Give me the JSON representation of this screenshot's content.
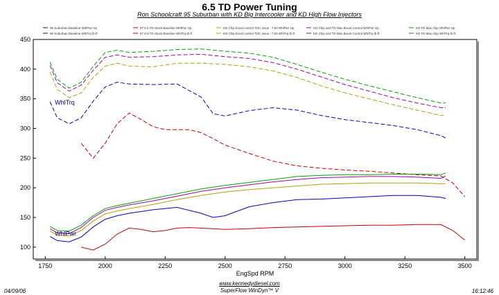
{
  "header": {
    "title": "6.5 TD Power Tuning",
    "subtitle": "Ron Schoolcraft 95 Suburban with KD Big Intercooler and KD High Flow Injectors"
  },
  "footer": {
    "date": "04/09/06",
    "url": "www.kennedydiesel.com",
    "software": "SuperFlow WinDyn™ V",
    "time": "16:12:46"
  },
  "legend": [
    {
      "text": "95 Suburban Baseline  WhlPwr  Hp",
      "color": "#0000c0"
    },
    {
      "text": "95 Suburban Baseline  WhlTrq  lb-ft",
      "color": "#0000c0"
    },
    {
      "text": "97 6.5 TD Stock Baseline  WhlPwr  Hp",
      "color": "#c00000"
    },
    {
      "text": "97 6.5 TD Stock Baseline  WhlTrq  lb-ft",
      "color": "#c00000"
    },
    {
      "text": "KD Chip  boost control  TOC issue : 7.50  WhlPwr  Hp",
      "color": "#b0a000"
    },
    {
      "text": "KD Chip  boost control  TOC issue : 7.50  WhlTrq  lb-ft",
      "color": "#b0a000"
    },
    {
      "text": "KD Chip and TD Max  Boost Control  WhlPwr  Hp",
      "color": "#a000a0"
    },
    {
      "text": "KD Chip and TD Max  Boost Control  WhlTrq  lb-ft",
      "color": "#a000a0"
    },
    {
      "text": "KD TD Max chip  WhlPwr  Hp",
      "color": "#00a000"
    },
    {
      "text": "KD TD Max chip  WhlTrq  lb-ft",
      "color": "#00a000"
    }
  ],
  "chart_data": {
    "type": "line",
    "xlabel": "EngSpd  RPM",
    "ylabel": "",
    "xlim": [
      1700,
      3550
    ],
    "ylim": [
      80,
      450
    ],
    "xticks": [
      1750,
      2000,
      2250,
      2500,
      2750,
      3000,
      3250,
      3500
    ],
    "yticks": [
      100,
      150,
      200,
      250,
      300,
      350,
      400,
      450
    ],
    "grid": false,
    "annotations": [
      {
        "text": "WhlTrq",
        "x": 1790,
        "y": 340
      },
      {
        "text": "WhlPwr",
        "x": 1790,
        "y": 119
      }
    ],
    "series": [
      {
        "color": "#00a000",
        "dash": "6,3",
        "x": [
          1770,
          1800,
          1850,
          1900,
          1950,
          2000,
          2050,
          2100,
          2200,
          2300,
          2400,
          2500,
          2600,
          2700,
          2800,
          2900,
          3000,
          3100,
          3200,
          3300,
          3400,
          3420
        ],
        "y": [
          412,
          383,
          368,
          378,
          405,
          428,
          432,
          428,
          430,
          433,
          434,
          430,
          427,
          420,
          408,
          395,
          383,
          372,
          362,
          352,
          343,
          343
        ]
      },
      {
        "color": "#a000a0",
        "dash": "6,3",
        "x": [
          1770,
          1800,
          1850,
          1900,
          1950,
          2000,
          2050,
          2100,
          2200,
          2300,
          2400,
          2500,
          2600,
          2700,
          2800,
          2900,
          3000,
          3100,
          3200,
          3300,
          3400,
          3420
        ],
        "y": [
          406,
          377,
          363,
          373,
          398,
          420,
          424,
          420,
          421,
          424,
          425,
          421,
          418,
          411,
          400,
          387,
          374,
          363,
          352,
          343,
          335,
          335
        ]
      },
      {
        "color": "#b0a000",
        "dash": "6,3",
        "x": [
          1770,
          1800,
          1850,
          1900,
          1950,
          2000,
          2050,
          2100,
          2200,
          2300,
          2400,
          2500,
          2600,
          2700,
          2800,
          2900,
          3000,
          3100,
          3200,
          3300,
          3400,
          3420
        ],
        "y": [
          395,
          366,
          352,
          360,
          386,
          405,
          410,
          405,
          404,
          410,
          410,
          408,
          404,
          397,
          386,
          372,
          360,
          350,
          340,
          331,
          322,
          322
        ]
      },
      {
        "color": "#0000c0",
        "dash": "6,3",
        "x": [
          1770,
          1800,
          1850,
          1900,
          1950,
          2000,
          2050,
          2100,
          2200,
          2300,
          2400,
          2450,
          2500,
          2600,
          2700,
          2800,
          2900,
          3000,
          3100,
          3200,
          3300,
          3400,
          3420
        ],
        "y": [
          345,
          318,
          308,
          318,
          346,
          370,
          378,
          375,
          374,
          375,
          353,
          325,
          321,
          330,
          335,
          331,
          322,
          315,
          310,
          305,
          298,
          288,
          284
        ]
      },
      {
        "color": "#c00000",
        "dash": "6,3",
        "x": [
          1900,
          1950,
          2000,
          2050,
          2100,
          2150,
          2200,
          2250,
          2300,
          2350,
          2400,
          2450,
          2500,
          2600,
          2700,
          2800,
          2900,
          3000,
          3100,
          3200,
          3300,
          3400,
          3450,
          3500
        ],
        "y": [
          275,
          250,
          275,
          308,
          326,
          315,
          303,
          298,
          298,
          298,
          293,
          283,
          272,
          258,
          245,
          237,
          233,
          230,
          228,
          225,
          222,
          220,
          208,
          185
        ]
      },
      {
        "color": "#00a000",
        "dash": "",
        "x": [
          1770,
          1800,
          1850,
          1900,
          1950,
          2000,
          2050,
          2100,
          2200,
          2300,
          2400,
          2500,
          2600,
          2700,
          2800,
          2900,
          3000,
          3100,
          3200,
          3300,
          3400,
          3420
        ],
        "y": [
          135,
          128,
          127,
          137,
          153,
          165,
          170,
          174,
          182,
          190,
          198,
          204,
          209,
          214,
          219,
          221,
          222,
          222,
          223,
          223,
          222,
          225
        ]
      },
      {
        "color": "#a000a0",
        "dash": "",
        "x": [
          1770,
          1800,
          1850,
          1900,
          1950,
          2000,
          2050,
          2100,
          2200,
          2300,
          2400,
          2500,
          2600,
          2700,
          2800,
          2900,
          3000,
          3100,
          3200,
          3300,
          3400,
          3420
        ],
        "y": [
          131,
          124,
          123,
          133,
          150,
          162,
          167,
          171,
          178,
          186,
          194,
          200,
          205,
          210,
          214,
          217,
          218,
          219,
          219,
          218,
          216,
          220
        ]
      },
      {
        "color": "#b0a000",
        "dash": "",
        "x": [
          1770,
          1800,
          1850,
          1900,
          1950,
          2000,
          2050,
          2100,
          2200,
          2300,
          2400,
          2500,
          2600,
          2700,
          2800,
          2900,
          3000,
          3100,
          3200,
          3300,
          3400,
          3420
        ],
        "y": [
          127,
          120,
          119,
          128,
          144,
          156,
          161,
          165,
          172,
          180,
          187,
          193,
          197,
          200,
          203,
          206,
          207,
          208,
          208,
          208,
          207,
          207
        ]
      },
      {
        "color": "#0000c0",
        "dash": "",
        "x": [
          1770,
          1800,
          1850,
          1900,
          1950,
          2000,
          2050,
          2100,
          2200,
          2300,
          2400,
          2450,
          2500,
          2600,
          2700,
          2800,
          2900,
          3000,
          3100,
          3200,
          3300,
          3400,
          3420
        ],
        "y": [
          118,
          111,
          109,
          117,
          134,
          147,
          153,
          157,
          163,
          167,
          157,
          150,
          153,
          168,
          175,
          180,
          181,
          183,
          185,
          187,
          187,
          184,
          182
        ]
      },
      {
        "color": "#c00000",
        "dash": "",
        "x": [
          1900,
          1950,
          2000,
          2050,
          2100,
          2150,
          2200,
          2250,
          2300,
          2350,
          2400,
          2500,
          2600,
          2700,
          2800,
          2900,
          3000,
          3100,
          3200,
          3300,
          3400,
          3450,
          3500
        ],
        "y": [
          100,
          95,
          105,
          122,
          132,
          130,
          126,
          128,
          132,
          133,
          132,
          130,
          131,
          133,
          134,
          135,
          136,
          137,
          137,
          138,
          138,
          128,
          112
        ]
      }
    ]
  }
}
